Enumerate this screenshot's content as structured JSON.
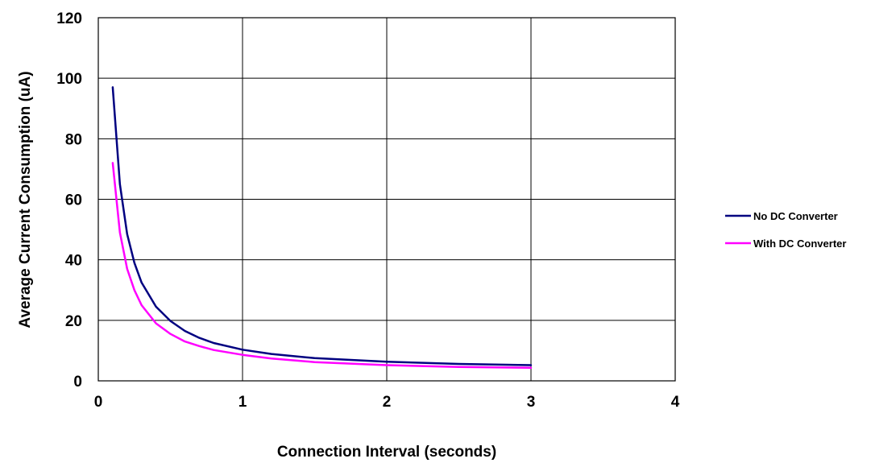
{
  "chart_data": {
    "type": "line",
    "xlabel": "Connection Interval (seconds)",
    "ylabel": "Average Current Consumption (uA)",
    "xlim": [
      0,
      4
    ],
    "ylim": [
      0,
      120
    ],
    "xticks": [
      0,
      1,
      2,
      3,
      4
    ],
    "yticks": [
      0,
      20,
      40,
      60,
      80,
      100,
      120
    ],
    "grid": true,
    "legend_position": "right",
    "series": [
      {
        "name": "No DC Converter",
        "color": "#000080",
        "x": [
          0.1,
          0.15,
          0.2,
          0.25,
          0.3,
          0.4,
          0.5,
          0.6,
          0.7,
          0.8,
          1.0,
          1.2,
          1.5,
          2.0,
          2.5,
          3.0
        ],
        "y": [
          97,
          65,
          48.5,
          39,
          32.5,
          24.5,
          19.8,
          16.5,
          14.2,
          12.5,
          10.3,
          8.9,
          7.5,
          6.3,
          5.6,
          5.2
        ]
      },
      {
        "name": "With DC Converter",
        "color": "#ff00ff",
        "x": [
          0.1,
          0.15,
          0.2,
          0.25,
          0.3,
          0.4,
          0.5,
          0.6,
          0.7,
          0.8,
          1.0,
          1.2,
          1.5,
          2.0,
          2.5,
          3.0
        ],
        "y": [
          72,
          49,
          37,
          30,
          25,
          19,
          15.5,
          13,
          11.5,
          10.2,
          8.6,
          7.4,
          6.2,
          5.2,
          4.6,
          4.3
        ]
      }
    ]
  }
}
